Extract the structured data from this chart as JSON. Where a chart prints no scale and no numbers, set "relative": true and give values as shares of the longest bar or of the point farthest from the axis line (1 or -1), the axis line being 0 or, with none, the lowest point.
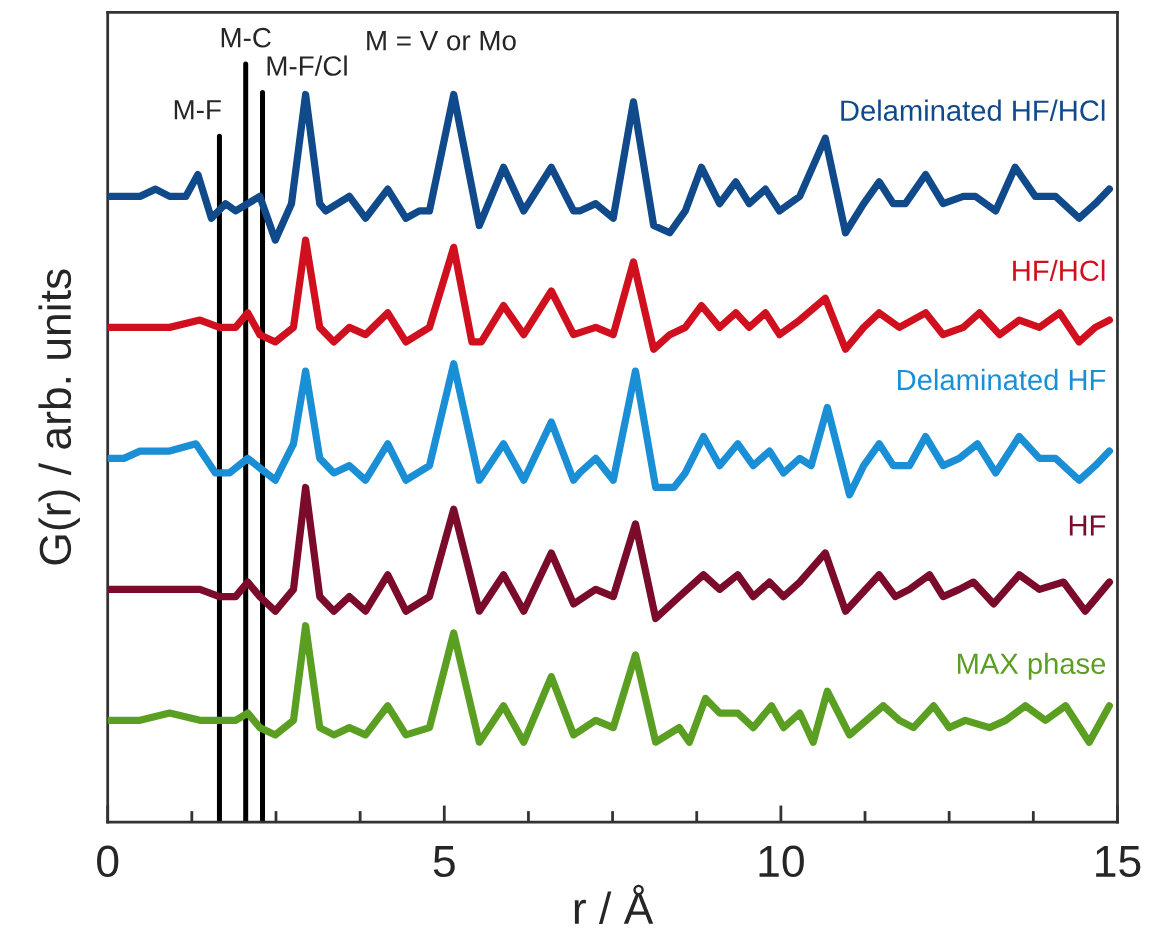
{
  "chart_data": {
    "type": "line",
    "xlabel": "r / Å",
    "ylabel": "G(r) / arb. units",
    "relative": true,
    "annotations": [
      "M = V or Mo"
    ],
    "xlim": [
      0,
      15
    ],
    "xticks": [
      0,
      {
        "value": 1.25,
        "label": null
      },
      {
        "value": 2.5,
        "label": null
      },
      {
        "value": 3.75,
        "label": null
      },
      5,
      {
        "value": 6.25,
        "label": null
      },
      {
        "value": 7.5,
        "label": null
      },
      {
        "value": 8.75,
        "label": null
      },
      10,
      {
        "value": 11.25,
        "label": null
      },
      {
        "value": 12.5,
        "label": null
      },
      {
        "value": 13.75,
        "label": null
      },
      15
    ],
    "ref_lines": [
      {
        "axis": "x",
        "value": 1.66,
        "label": "M-F",
        "color": "#000000"
      },
      {
        "axis": "x",
        "value": 2.05,
        "label": "M-C",
        "color": "#000000"
      },
      {
        "axis": "x",
        "value": 2.3,
        "label": "M-F/Cl",
        "color": "#000000"
      }
    ],
    "series": [
      {
        "name": "Delaminated HF/HCl",
        "color": "#114a8b",
        "x": [
          0.03,
          0.24,
          0.48,
          0.71,
          0.92,
          1.16,
          1.34,
          1.54,
          1.75,
          1.9,
          2.08,
          2.26,
          2.49,
          2.73,
          2.94,
          3.15,
          3.24,
          3.59,
          3.83,
          4.16,
          4.43,
          4.63,
          4.78,
          5.14,
          5.52,
          5.88,
          6.18,
          6.59,
          6.92,
          7.01,
          7.25,
          7.51,
          7.81,
          8.11,
          8.35,
          8.58,
          8.82,
          9.09,
          9.33,
          9.53,
          9.77,
          9.98,
          10.28,
          10.66,
          10.96,
          11.23,
          11.46,
          11.67,
          11.85,
          12.15,
          12.41,
          12.71,
          12.89,
          13.19,
          13.48,
          13.78,
          14.08,
          14.43,
          14.67,
          14.88
        ],
        "values": [
          0.86,
          0.86,
          0.86,
          0.87,
          0.86,
          0.86,
          0.89,
          0.83,
          0.85,
          0.84,
          0.85,
          0.86,
          0.8,
          0.85,
          1.0,
          0.85,
          0.84,
          0.86,
          0.83,
          0.87,
          0.83,
          0.84,
          0.84,
          1.0,
          0.82,
          0.9,
          0.84,
          0.9,
          0.84,
          0.84,
          0.85,
          0.83,
          0.99,
          0.82,
          0.81,
          0.84,
          0.9,
          0.85,
          0.88,
          0.85,
          0.87,
          0.84,
          0.86,
          0.94,
          0.81,
          0.85,
          0.88,
          0.85,
          0.85,
          0.89,
          0.85,
          0.86,
          0.86,
          0.84,
          0.9,
          0.86,
          0.86,
          0.83,
          0.85,
          0.87
        ]
      },
      {
        "name": "HF/HCl",
        "color": "#d0101e",
        "x": [
          0.03,
          0.48,
          0.92,
          1.37,
          1.66,
          1.9,
          2.08,
          2.26,
          2.49,
          2.76,
          2.94,
          3.15,
          3.36,
          3.59,
          3.83,
          4.16,
          4.43,
          4.78,
          5.14,
          5.41,
          5.55,
          5.88,
          6.18,
          6.59,
          6.92,
          7.25,
          7.51,
          7.81,
          8.11,
          8.35,
          8.58,
          8.82,
          9.09,
          9.33,
          9.53,
          9.77,
          9.98,
          10.28,
          10.66,
          10.96,
          11.23,
          11.46,
          11.76,
          12.15,
          12.41,
          12.71,
          12.95,
          13.25,
          13.54,
          13.84,
          14.14,
          14.43,
          14.67,
          14.88
        ],
        "values": [
          0.68,
          0.68,
          0.68,
          0.69,
          0.68,
          0.68,
          0.7,
          0.67,
          0.66,
          0.68,
          0.8,
          0.68,
          0.66,
          0.68,
          0.67,
          0.7,
          0.66,
          0.68,
          0.79,
          0.66,
          0.66,
          0.71,
          0.67,
          0.73,
          0.67,
          0.68,
          0.67,
          0.77,
          0.65,
          0.67,
          0.68,
          0.71,
          0.68,
          0.7,
          0.68,
          0.7,
          0.67,
          0.69,
          0.72,
          0.65,
          0.68,
          0.7,
          0.68,
          0.7,
          0.67,
          0.68,
          0.7,
          0.67,
          0.69,
          0.68,
          0.7,
          0.66,
          0.68,
          0.69
        ]
      },
      {
        "name": "Delaminated HF",
        "color": "#1a8fd6",
        "x": [
          0.03,
          0.24,
          0.48,
          0.92,
          1.31,
          1.6,
          1.81,
          2.08,
          2.49,
          2.76,
          2.94,
          3.15,
          3.36,
          3.59,
          3.83,
          4.16,
          4.43,
          4.78,
          5.14,
          5.52,
          5.88,
          6.18,
          6.59,
          6.92,
          7.01,
          7.25,
          7.51,
          7.84,
          8.14,
          8.41,
          8.58,
          8.85,
          9.09,
          9.36,
          9.59,
          9.83,
          10.04,
          10.28,
          10.45,
          10.69,
          11.02,
          11.23,
          11.46,
          11.67,
          11.91,
          12.15,
          12.41,
          12.65,
          12.92,
          13.19,
          13.54,
          13.84,
          14.08,
          14.43,
          14.67,
          14.88
        ],
        "values": [
          0.5,
          0.5,
          0.51,
          0.51,
          0.52,
          0.48,
          0.48,
          0.5,
          0.47,
          0.52,
          0.62,
          0.5,
          0.48,
          0.49,
          0.47,
          0.52,
          0.47,
          0.49,
          0.63,
          0.47,
          0.52,
          0.47,
          0.55,
          0.47,
          0.48,
          0.5,
          0.47,
          0.62,
          0.46,
          0.46,
          0.48,
          0.53,
          0.49,
          0.52,
          0.49,
          0.51,
          0.48,
          0.5,
          0.49,
          0.57,
          0.45,
          0.49,
          0.52,
          0.49,
          0.49,
          0.53,
          0.49,
          0.5,
          0.52,
          0.48,
          0.53,
          0.5,
          0.5,
          0.47,
          0.49,
          0.51
        ]
      },
      {
        "name": "HF",
        "color": "#7a0b2a",
        "x": [
          0.03,
          0.48,
          0.92,
          1.37,
          1.66,
          1.9,
          2.08,
          2.26,
          2.49,
          2.76,
          2.94,
          3.15,
          3.36,
          3.59,
          3.83,
          4.16,
          4.43,
          4.78,
          5.14,
          5.52,
          5.88,
          6.18,
          6.59,
          6.92,
          7.25,
          7.51,
          7.84,
          8.14,
          8.49,
          8.85,
          9.09,
          9.36,
          9.59,
          9.83,
          10.04,
          10.28,
          10.66,
          10.96,
          11.46,
          11.7,
          11.91,
          12.21,
          12.41,
          12.65,
          12.86,
          13.16,
          13.54,
          13.84,
          14.2,
          14.52,
          14.88
        ],
        "values": [
          0.32,
          0.32,
          0.32,
          0.32,
          0.31,
          0.31,
          0.33,
          0.31,
          0.29,
          0.32,
          0.46,
          0.31,
          0.29,
          0.31,
          0.29,
          0.34,
          0.29,
          0.31,
          0.43,
          0.29,
          0.34,
          0.29,
          0.37,
          0.3,
          0.32,
          0.31,
          0.41,
          0.28,
          0.31,
          0.34,
          0.32,
          0.34,
          0.31,
          0.33,
          0.31,
          0.33,
          0.37,
          0.29,
          0.34,
          0.31,
          0.32,
          0.34,
          0.31,
          0.32,
          0.33,
          0.3,
          0.34,
          0.32,
          0.33,
          0.29,
          0.33
        ]
      },
      {
        "name": "MAX phase",
        "color": "#5a9e22",
        "x": [
          0.03,
          0.48,
          0.92,
          1.37,
          1.66,
          1.9,
          2.08,
          2.26,
          2.49,
          2.76,
          2.94,
          3.15,
          3.36,
          3.59,
          3.83,
          4.16,
          4.43,
          4.78,
          5.14,
          5.52,
          5.88,
          6.18,
          6.59,
          6.92,
          7.25,
          7.51,
          7.84,
          8.14,
          8.49,
          8.64,
          8.88,
          9.09,
          9.36,
          9.59,
          9.86,
          10.04,
          10.28,
          10.48,
          10.69,
          11.02,
          11.52,
          11.76,
          11.97,
          12.27,
          12.5,
          12.74,
          13.1,
          13.34,
          13.63,
          13.93,
          14.23,
          14.58,
          14.88
        ],
        "values": [
          0.14,
          0.14,
          0.15,
          0.14,
          0.14,
          0.14,
          0.15,
          0.13,
          0.12,
          0.14,
          0.27,
          0.13,
          0.12,
          0.13,
          0.12,
          0.16,
          0.12,
          0.13,
          0.26,
          0.11,
          0.16,
          0.11,
          0.2,
          0.12,
          0.14,
          0.13,
          0.23,
          0.11,
          0.13,
          0.11,
          0.17,
          0.15,
          0.15,
          0.13,
          0.16,
          0.13,
          0.15,
          0.11,
          0.18,
          0.12,
          0.16,
          0.14,
          0.13,
          0.16,
          0.13,
          0.14,
          0.13,
          0.14,
          0.16,
          0.14,
          0.16,
          0.11,
          0.16
        ]
      }
    ]
  }
}
